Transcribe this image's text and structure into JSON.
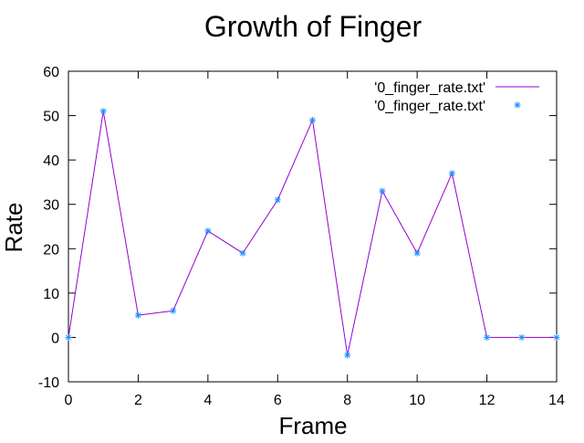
{
  "chart_data": {
    "type": "line",
    "title": "Growth of Finger",
    "xlabel": "Frame",
    "ylabel": "Rate",
    "xlim": [
      0,
      14
    ],
    "ylim": [
      -10,
      60
    ],
    "x_ticks": [
      0,
      2,
      4,
      6,
      8,
      10,
      12,
      14
    ],
    "y_ticks": [
      -10,
      0,
      10,
      20,
      30,
      40,
      50,
      60
    ],
    "grid": false,
    "legend_position": "top-right",
    "x": [
      0,
      1,
      2,
      3,
      4,
      5,
      6,
      7,
      8,
      9,
      10,
      11,
      12,
      13,
      14
    ],
    "series": [
      {
        "name": "'0_finger_rate.txt'",
        "style": "line",
        "color": "#9400d3",
        "values": [
          0,
          51,
          5,
          6,
          24,
          19,
          31,
          49,
          -4,
          33,
          19,
          37,
          0,
          0,
          0
        ]
      },
      {
        "name": "'0_finger_rate.txt'",
        "style": "points",
        "marker": "asterisk",
        "color": "#1e90ff",
        "values": [
          0,
          51,
          5,
          6,
          24,
          19,
          31,
          49,
          -4,
          33,
          19,
          37,
          0,
          0,
          0
        ]
      }
    ]
  }
}
